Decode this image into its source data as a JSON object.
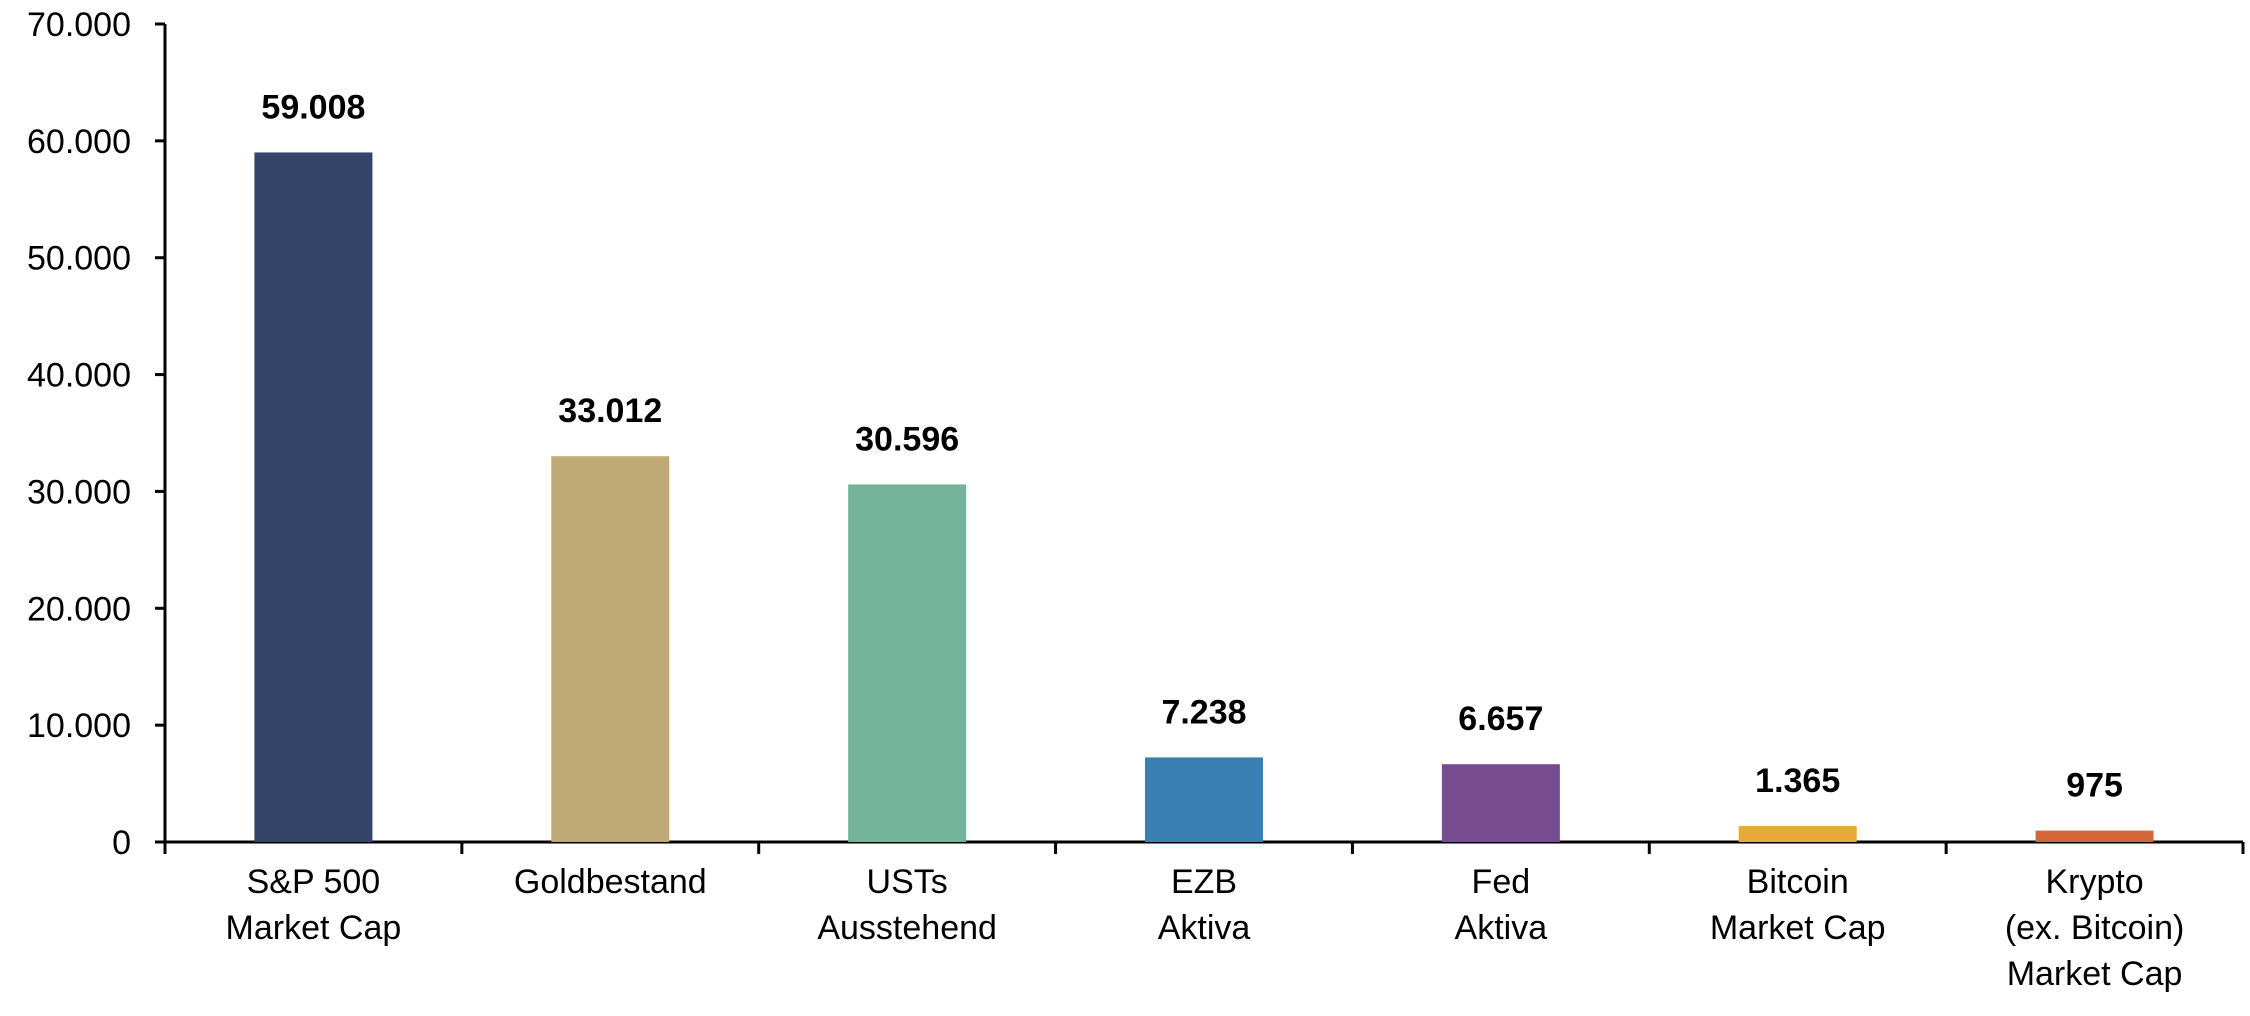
{
  "chart_data": {
    "type": "bar",
    "categories": [
      [
        "S&P 500",
        "Market Cap"
      ],
      [
        "Goldbestand"
      ],
      [
        "USTs",
        "Ausstehend"
      ],
      [
        "EZB",
        "Aktiva"
      ],
      [
        "Fed",
        "Aktiva"
      ],
      [
        "Bitcoin",
        "Market Cap"
      ],
      [
        "Krypto",
        "(ex. Bitcoin)",
        "Market Cap"
      ]
    ],
    "values": [
      59008,
      33012,
      30596,
      7238,
      6657,
      1365,
      975
    ],
    "value_labels": [
      "59.008",
      "33.012",
      "30.596",
      "7.238",
      "6.657",
      "1.365",
      "975"
    ],
    "colors": [
      "#344468",
      "#bfaa76",
      "#73b39a",
      "#3b80b3",
      "#764b8f",
      "#e7aa3a",
      "#d4663a"
    ],
    "ylim": [
      0,
      70000
    ],
    "yticks": [
      0,
      10000,
      20000,
      30000,
      40000,
      50000,
      60000,
      70000
    ],
    "ytick_labels": [
      "0",
      "10.000",
      "20.000",
      "30.000",
      "40.000",
      "50.000",
      "60.000",
      "70.000"
    ],
    "grid": false,
    "legend": "none"
  }
}
